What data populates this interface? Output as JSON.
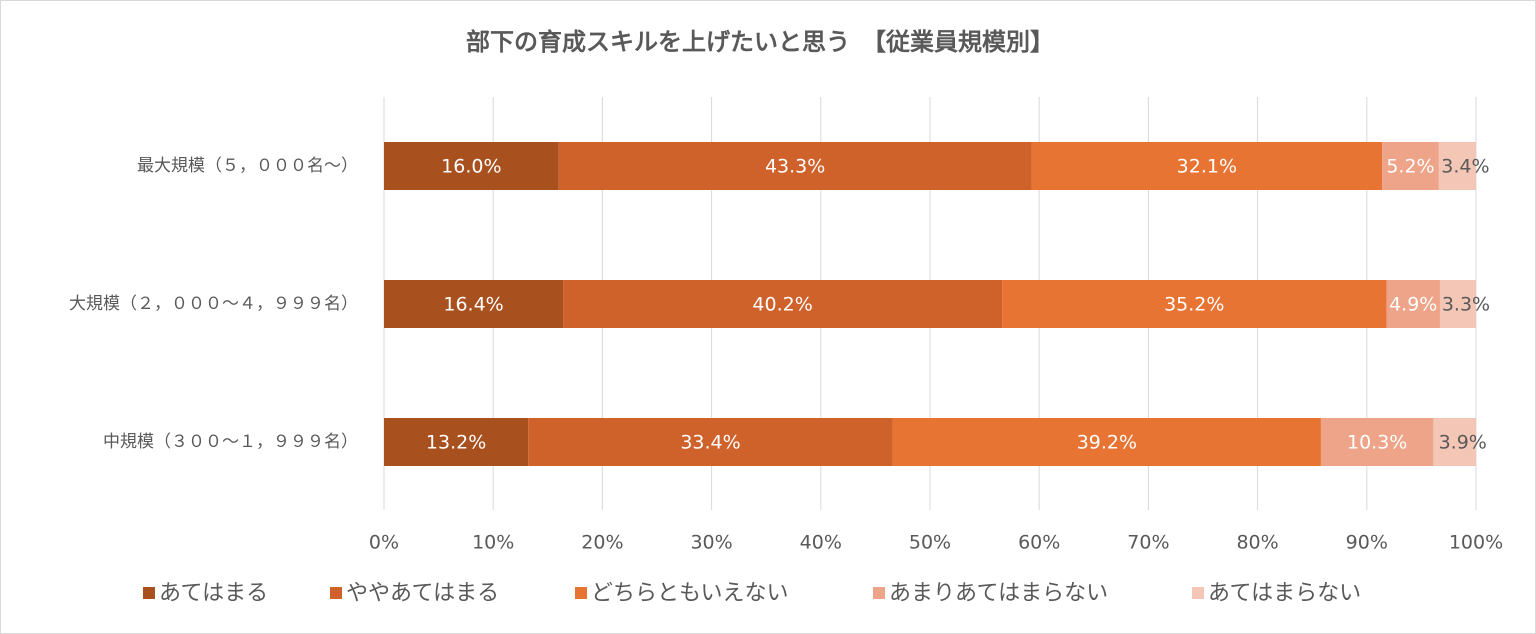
{
  "chart_data": {
    "type": "stacked-bar-horizontal",
    "title": "部下の育成スキルを上げたいと思う　【従業員規模別】",
    "categories": [
      "最大規模（５，０００名～）",
      "大規模（２，０００～４，９９９名）",
      "中規模（３００～１，９９９名）"
    ],
    "series": [
      {
        "name": "あてはまる",
        "color": "#a9501f",
        "label_color": "#ffffff",
        "values": [
          16.0,
          16.4,
          13.2
        ],
        "value_labels": [
          "16.0%",
          "16.4%",
          "13.2%"
        ]
      },
      {
        "name": "ややあてはまる",
        "color": "#cf612b",
        "label_color": "#ffffff",
        "values": [
          43.3,
          40.2,
          33.4
        ],
        "value_labels": [
          "43.3%",
          "40.2%",
          "33.4%"
        ]
      },
      {
        "name": "どちらともいえない",
        "color": "#e87434",
        "label_color": "#ffffff",
        "values": [
          32.1,
          35.2,
          39.2
        ],
        "value_labels": [
          "32.1%",
          "35.2%",
          "39.2%"
        ]
      },
      {
        "name": "あまりあてはまらない",
        "color": "#eea488",
        "label_color": "#ffffff",
        "values": [
          5.2,
          4.9,
          10.3
        ],
        "value_labels": [
          "5.2%",
          "4.9%",
          "10.3%"
        ]
      },
      {
        "name": "あてはまらない",
        "color": "#f4c6b6",
        "label_color": "#595959",
        "values": [
          3.4,
          3.3,
          3.9
        ],
        "value_labels": [
          "3.4%",
          "3.3%",
          "3.9%"
        ]
      }
    ],
    "xlim": [
      0,
      100
    ],
    "xticks": [
      {
        "value": 0,
        "label": "0%"
      },
      {
        "value": 10,
        "label": "10%"
      },
      {
        "value": 20,
        "label": "20%"
      },
      {
        "value": 30,
        "label": "30%"
      },
      {
        "value": 40,
        "label": "40%"
      },
      {
        "value": 50,
        "label": "50%"
      },
      {
        "value": 60,
        "label": "60%"
      },
      {
        "value": 70,
        "label": "70%"
      },
      {
        "value": 80,
        "label": "80%"
      },
      {
        "value": 90,
        "label": "90%"
      },
      {
        "value": 100,
        "label": "100%"
      }
    ],
    "grid": true,
    "legend": "bottom"
  }
}
